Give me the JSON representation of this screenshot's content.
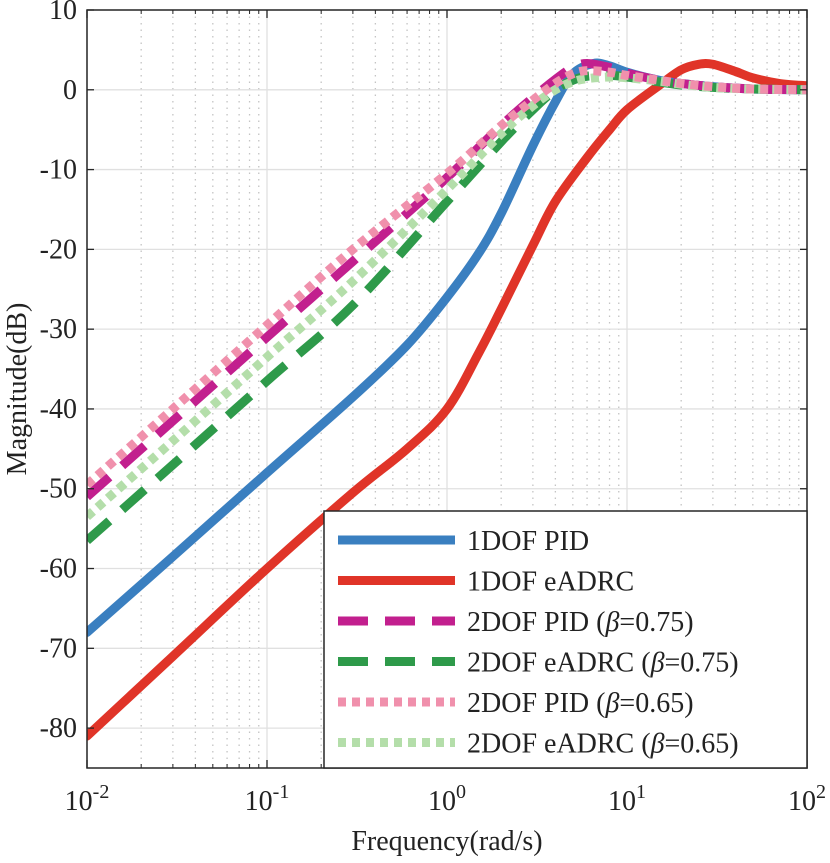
{
  "chart_data": {
    "type": "line",
    "xscale": "log",
    "xlim": [
      0.01,
      100
    ],
    "ylim": [
      -85,
      10
    ],
    "xlabel": "Frequency(rad/s)",
    "ylabel": "Magnitude(dB)",
    "grid": true,
    "legend_position": "bottom-right",
    "yticks": [
      10,
      0,
      -10,
      -20,
      -30,
      -40,
      -50,
      -60,
      -70,
      -80
    ],
    "ytick_labels": [
      "10",
      "0",
      "-10",
      "-20",
      "-30",
      "-40",
      "-50",
      "-60",
      "-70",
      "-80"
    ],
    "xticks": [
      {
        "value": 0.01,
        "base": "10",
        "exp": "-2"
      },
      {
        "value": 0.1,
        "base": "10",
        "exp": "-1"
      },
      {
        "value": 1,
        "base": "10",
        "exp": "0"
      },
      {
        "value": 10,
        "base": "10",
        "exp": "1"
      },
      {
        "value": 100,
        "base": "10",
        "exp": "2"
      }
    ],
    "series": [
      {
        "name": "1DOF PID",
        "label_prefix": "1DOF PID",
        "beta": "",
        "color": "#3a7fc0",
        "style": "solid",
        "x": [
          0.01,
          0.03,
          0.1,
          0.3,
          0.6,
          1,
          1.5,
          2,
          3,
          4,
          5,
          6.5,
          8,
          10,
          15,
          20,
          30,
          50,
          100
        ],
        "y": [
          -68,
          -58.5,
          -48,
          -38.5,
          -32,
          -26,
          -20.5,
          -15.5,
          -7,
          -1.5,
          2,
          3.3,
          3,
          2.2,
          1.2,
          0.8,
          0.4,
          0.1,
          0
        ]
      },
      {
        "name": "1DOF eADRC",
        "label_prefix": "1DOF eADRC",
        "beta": "",
        "color": "#e03428",
        "style": "solid",
        "x": [
          0.01,
          0.03,
          0.1,
          0.3,
          0.6,
          1,
          1.5,
          2,
          3,
          4,
          6,
          8,
          10,
          15,
          20,
          25,
          30,
          40,
          50,
          70,
          100
        ],
        "y": [
          -81,
          -71,
          -60,
          -50.5,
          -45,
          -40,
          -33,
          -27.5,
          -19.5,
          -14,
          -8.5,
          -5,
          -2.5,
          0.5,
          2.5,
          3.2,
          3.2,
          2.3,
          1.5,
          0.8,
          0.5
        ]
      },
      {
        "name": "2DOF PID (β=0.75)",
        "label_prefix": "2DOF PID (",
        "beta": "0.75",
        "color": "#c21f8e",
        "style": "dash",
        "x": [
          0.01,
          0.03,
          0.1,
          0.3,
          1,
          2,
          3,
          4,
          5,
          6,
          8,
          10,
          15,
          20,
          30,
          50,
          100
        ],
        "y": [
          -51,
          -41.5,
          -31,
          -21.5,
          -11,
          -4.5,
          -1,
          1.3,
          2.8,
          3.3,
          2.8,
          2.1,
          1.2,
          0.8,
          0.4,
          0.1,
          0
        ]
      },
      {
        "name": "2DOF eADRC (β=0.75)",
        "label_prefix": "2DOF eADRC (",
        "beta": "0.75",
        "color": "#2e9a4a",
        "style": "dash",
        "x": [
          0.01,
          0.03,
          0.1,
          0.3,
          1,
          2,
          3,
          4,
          5,
          6,
          8,
          10,
          15,
          20,
          30,
          50,
          100
        ],
        "y": [
          -56.5,
          -47,
          -36.5,
          -27,
          -14,
          -6.5,
          -2.5,
          0,
          1.2,
          1.7,
          1.8,
          1.6,
          1,
          0.6,
          0.3,
          0.1,
          0
        ]
      },
      {
        "name": "2DOF PID (β=0.65)",
        "label_prefix": "2DOF PID (",
        "beta": "0.65",
        "color": "#f090ac",
        "style": "dot",
        "x": [
          0.01,
          0.03,
          0.1,
          0.3,
          1,
          2,
          3,
          4,
          5,
          6,
          8,
          10,
          15,
          20,
          30,
          50,
          100
        ],
        "y": [
          -49.5,
          -40,
          -29.5,
          -20,
          -10.5,
          -4.5,
          -1.3,
          0.8,
          2,
          2.4,
          2.2,
          1.8,
          1.2,
          0.8,
          0.4,
          0.1,
          0
        ]
      },
      {
        "name": "2DOF eADRC (β=0.65)",
        "label_prefix": "2DOF eADRC (",
        "beta": "0.65",
        "color": "#b4deaa",
        "style": "dot",
        "x": [
          0.01,
          0.03,
          0.1,
          0.3,
          1,
          2,
          3,
          4,
          5,
          6,
          8,
          10,
          15,
          20,
          30,
          50,
          100
        ],
        "y": [
          -53.5,
          -44,
          -33.5,
          -24,
          -12.5,
          -5.5,
          -2,
          0,
          1,
          1.4,
          1.6,
          1.5,
          1.1,
          0.7,
          0.3,
          0.1,
          0
        ]
      }
    ]
  },
  "legend": {
    "beta_symbol": "β",
    "eq": "=",
    "close": ")"
  }
}
